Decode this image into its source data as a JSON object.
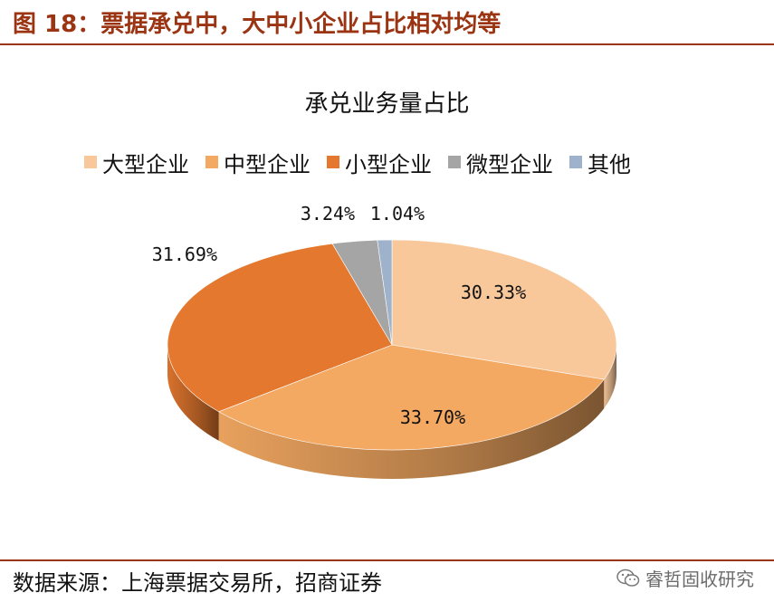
{
  "figure": {
    "title": "图 18：票据承兑中，大中小企业占比相对均等"
  },
  "chart_data": {
    "type": "pie",
    "title": "承兑业务量占比",
    "legend_position": "top",
    "series": [
      {
        "name": "大型企业",
        "value": 30.33,
        "label": "30.33%",
        "color": "#f8c89b"
      },
      {
        "name": "中型企业",
        "value": 33.7,
        "label": "33.70%",
        "color": "#f4a962"
      },
      {
        "name": "小型企业",
        "value": 31.69,
        "label": "31.69%",
        "color": "#e4782f"
      },
      {
        "name": "微型企业",
        "value": 3.24,
        "label": "3.24%",
        "color": "#a5a5a5"
      },
      {
        "name": "其他",
        "value": 1.04,
        "label": "1.04%",
        "color": "#9fb2cc"
      }
    ]
  },
  "footer": {
    "source": "数据来源：上海票据交易所，招商证券",
    "watermark": "睿哲固收研究",
    "watermark_icon": "wechat-icon"
  }
}
